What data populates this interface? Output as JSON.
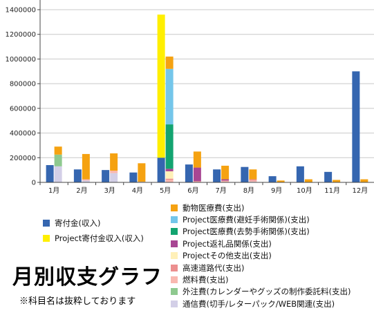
{
  "title": "月別収支グラフ",
  "note": "※科目名は抜粋しております",
  "chart_data": {
    "type": "bar",
    "stacked": true,
    "ylim": [
      0,
      1400000
    ],
    "yticks": [
      "0",
      "200000",
      "400000",
      "600000",
      "800000",
      "1000000",
      "1200000",
      "1400000"
    ],
    "grid": true,
    "categories": [
      "1月",
      "2月",
      "3月",
      "4月",
      "5月",
      "6月",
      "7月",
      "8月",
      "9月",
      "10月",
      "11月",
      "12月"
    ],
    "income_series": [
      {
        "name": "寄付金(収入)",
        "color": "#3566b0",
        "values": [
          140000,
          105000,
          100000,
          80000,
          200000,
          145000,
          105000,
          125000,
          50000,
          130000,
          85000,
          900000
        ]
      },
      {
        "name": "Project寄付金収入(収入)",
        "color": "#ffef00",
        "values": [
          0,
          0,
          0,
          0,
          1160000,
          0,
          0,
          0,
          0,
          0,
          0,
          0
        ]
      }
    ],
    "expense_series": [
      {
        "name": "動物医療費(支出)",
        "color": "#f5a211",
        "values": [
          65000,
          205000,
          140000,
          150000,
          100000,
          130000,
          110000,
          80000,
          15000,
          25000,
          20000,
          25000
        ]
      },
      {
        "name": "Project医療費(避妊手術関係)(支出)",
        "color": "#74c6ea",
        "values": [
          0,
          0,
          0,
          0,
          450000,
          0,
          0,
          0,
          0,
          0,
          0,
          0
        ]
      },
      {
        "name": "Project医療費(去勢手術関係)(支出)",
        "color": "#13a470",
        "values": [
          0,
          0,
          0,
          0,
          360000,
          0,
          0,
          0,
          0,
          0,
          0,
          0
        ]
      },
      {
        "name": "Project返礼品関係(支出)",
        "color": "#a84693",
        "values": [
          0,
          0,
          0,
          0,
          20000,
          110000,
          10000,
          0,
          0,
          0,
          0,
          0
        ]
      },
      {
        "name": "Projectその他支出(支出)",
        "color": "#fff0b8",
        "values": [
          0,
          0,
          0,
          0,
          60000,
          0,
          0,
          0,
          0,
          0,
          0,
          0
        ]
      },
      {
        "name": "高速道路代(支出)",
        "color": "#ec8f8f",
        "values": [
          0,
          0,
          0,
          0,
          10000,
          5000,
          5000,
          10000,
          0,
          0,
          0,
          0
        ]
      },
      {
        "name": "燃料費(支出)",
        "color": "#f9b8b0",
        "values": [
          0,
          10000,
          20000,
          0,
          20000,
          5000,
          10000,
          10000,
          0,
          0,
          0,
          0
        ]
      },
      {
        "name": "外注費(カレンダーやグッズの制作委託料(支出)",
        "color": "#8ec98f",
        "values": [
          95000,
          0,
          0,
          0,
          0,
          0,
          0,
          0,
          0,
          0,
          0,
          0
        ]
      },
      {
        "name": "通信費(切手/レターパック/WEB関連(支出)",
        "color": "#d3cfe7",
        "values": [
          130000,
          15000,
          75000,
          5000,
          0,
          0,
          0,
          5000,
          0,
          0,
          0,
          0
        ]
      }
    ]
  }
}
